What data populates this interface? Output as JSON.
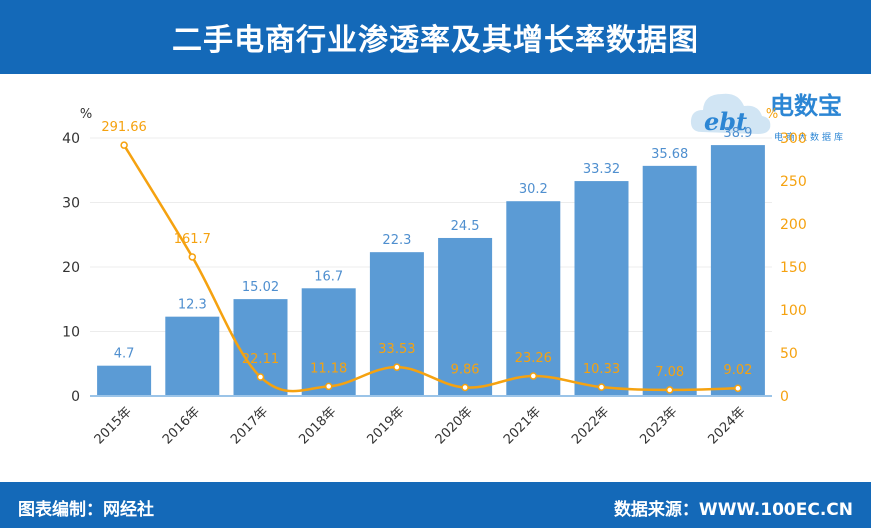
{
  "header": {
    "title": "二手电商行业渗透率及其增长率数据图"
  },
  "footer": {
    "credit": "图表编制：网经社",
    "source": "数据来源：WWW.100EC.CN"
  },
  "logo": {
    "name": "电数宝",
    "badge": "ebt",
    "subtitle": "电商大数据库"
  },
  "colors": {
    "bar": "#5b9bd5",
    "line": "#f5a210",
    "header_bg": "#1469b8",
    "bar_label": "#4f8fcf",
    "axis": "#666666"
  },
  "chart_data": {
    "type": "bar+line",
    "title": "二手电商行业渗透率及其增长率数据图",
    "categories": [
      "2015年",
      "2016年",
      "2017年",
      "2018年",
      "2019年",
      "2020年",
      "2021年",
      "2022年",
      "2023年",
      "2024年"
    ],
    "series": [
      {
        "name": "渗透率",
        "type": "bar",
        "axis": "left",
        "values": [
          4.7,
          12.3,
          15.02,
          16.7,
          22.3,
          24.5,
          30.2,
          33.32,
          35.68,
          38.9
        ]
      },
      {
        "name": "增长率",
        "type": "line",
        "axis": "right",
        "values": [
          291.66,
          161.7,
          22.11,
          11.18,
          33.53,
          9.86,
          23.26,
          10.33,
          7.08,
          9.02
        ]
      }
    ],
    "y_left": {
      "unit": "%",
      "ylim": [
        0,
        40
      ],
      "ticks": [
        0,
        10,
        20,
        30,
        40
      ]
    },
    "y_right": {
      "unit": "%",
      "ylim": [
        0,
        300
      ],
      "ticks": [
        0,
        50,
        100,
        150,
        200,
        250,
        300
      ]
    }
  }
}
